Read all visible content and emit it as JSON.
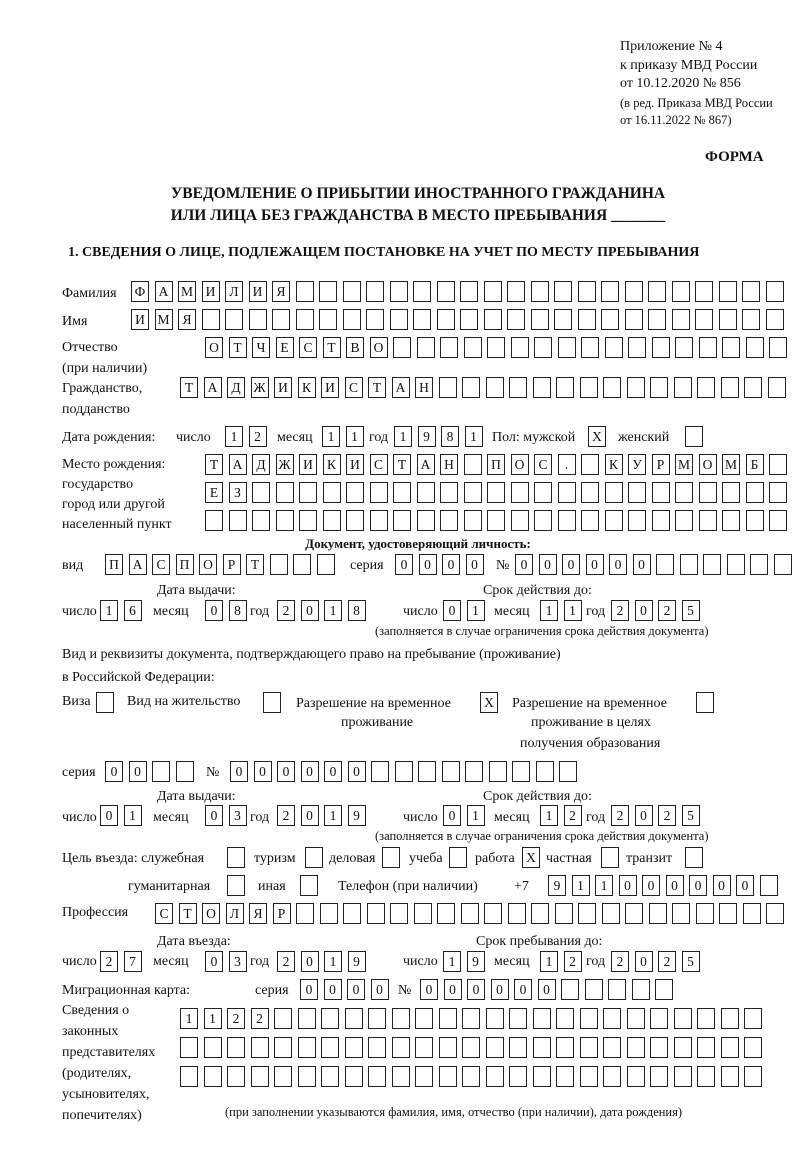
{
  "header": {
    "line1": "Приложение № 4",
    "line2": "к приказу МВД России",
    "line3": "от 10.12.2020 № 856",
    "line4": "(в ред. Приказа МВД России",
    "line5": "от 16.11.2022 № 867)",
    "forma": "ФОРМА",
    "title1": "УВЕДОМЛЕНИЕ О ПРИБЫТИИ ИНОСТРАННОГО ГРАЖДАНИНА",
    "title2": "ИЛИ ЛИЦА БЕЗ ГРАЖДАНСТВА В МЕСТО ПРЕБЫВАНИЯ _______",
    "section1": "1. СВЕДЕНИЯ О ЛИЦЕ, ПОДЛЕЖАЩЕМ ПОСТАНОВКЕ НА УЧЕТ ПО МЕСТУ ПРЕБЫВАНИЯ"
  },
  "labels": {
    "surname": "Фамилия",
    "name": "Имя",
    "patronymic1": "Отчество",
    "patronymic2": "(при наличии)",
    "citizenship1": "Гражданство,",
    "citizenship2": "подданство",
    "birth_date": "Дата рождения:",
    "day": "число",
    "month": "месяц",
    "year": "год",
    "sex": "Пол: мужской",
    "female": "женский",
    "birthplace1": "Место рождения:",
    "birthplace2": "государство",
    "birthplace3": "город или другой",
    "birthplace4": "населенный пункт",
    "id_doc": "Документ, удостоверяющий личность:",
    "kind": "вид",
    "series": "серия",
    "number": "№",
    "issue_date": "Дата выдачи:",
    "valid_until": "Срок действия до:",
    "validity_note": "(заполняется в случае ограничения срока действия документа)",
    "stay_doc1": "Вид и реквизиты документа, подтверждающего право на пребывание (проживание)",
    "stay_doc2": "в Российской Федерации:",
    "visa": "Виза",
    "residence": "Вид на жительство",
    "temp_res1": "Разрешение на временное",
    "temp_res2": "проживание",
    "temp_edu1": "Разрешение на временное",
    "temp_edu2": "проживание в целях",
    "temp_edu3": "получения образования",
    "purpose": "Цель въезда: служебная",
    "tourism": "туризм",
    "business": "деловая",
    "study": "учеба",
    "work": "работа",
    "private": "частная",
    "transit": "транзит",
    "humanitarian": "гуманитарная",
    "other": "иная",
    "phone": "Телефон (при наличии)",
    "phone_prefix": "+7",
    "profession": "Профессия",
    "entry_date": "Дата въезда:",
    "stay_until": "Срок пребывания до:",
    "migration_card": "Миграционная карта:",
    "reps1": "Сведения о",
    "reps2": "законных",
    "reps3": "представителях",
    "reps4": "(родителях,",
    "reps5": "усыновителях,",
    "reps6": "попечителях)",
    "reps_note": "(при заполнении указываются фамилия, имя, отчество (при наличии), дата рождения)"
  },
  "fields": {
    "surname": [
      "Ф",
      "А",
      "М",
      "И",
      "Л",
      "И",
      "Я"
    ],
    "name": [
      "И",
      "М",
      "Я"
    ],
    "patronymic": [
      "О",
      "Т",
      "Ч",
      "Е",
      "С",
      "Т",
      "В",
      "О"
    ],
    "citizenship": [
      "Т",
      "А",
      "Д",
      "Ж",
      "И",
      "К",
      "И",
      "С",
      "Т",
      "А",
      "Н"
    ],
    "birth_day": [
      "1",
      "2"
    ],
    "birth_month": [
      "1",
      "1"
    ],
    "birth_year": [
      "1",
      "9",
      "8",
      "1"
    ],
    "sex_male": [
      "X"
    ],
    "sex_female": [
      ""
    ],
    "birthplace1": [
      "Т",
      "А",
      "Д",
      "Ж",
      "И",
      "К",
      "И",
      "С",
      "Т",
      "А",
      "Н",
      "",
      "П",
      "О",
      "С",
      ".",
      "",
      "К",
      "У",
      "Р",
      "М",
      "О",
      "М",
      "Б"
    ],
    "birthplace2": [
      "Е",
      "З"
    ],
    "birthplace3": [],
    "doc_kind": [
      "П",
      "А",
      "С",
      "П",
      "О",
      "Р",
      "Т"
    ],
    "doc_series": [
      "0",
      "0",
      "0",
      "0"
    ],
    "doc_number": [
      "0",
      "0",
      "0",
      "0",
      "0",
      "0"
    ],
    "doc_issue_day": [
      "1",
      "6"
    ],
    "doc_issue_month": [
      "0",
      "8"
    ],
    "doc_issue_year": [
      "2",
      "0",
      "1",
      "8"
    ],
    "doc_valid_day": [
      "0",
      "1"
    ],
    "doc_valid_month": [
      "1",
      "1"
    ],
    "doc_valid_year": [
      "2",
      "0",
      "2",
      "5"
    ],
    "visa": [
      ""
    ],
    "residence": [
      ""
    ],
    "temp_res": [
      "X"
    ],
    "temp_edu": [
      ""
    ],
    "stay_series": [
      "0",
      "0"
    ],
    "stay_number": [
      "0",
      "0",
      "0",
      "0",
      "0",
      "0"
    ],
    "stay_issue_day": [
      "0",
      "1"
    ],
    "stay_issue_month": [
      "0",
      "3"
    ],
    "stay_issue_year": [
      "2",
      "0",
      "1",
      "9"
    ],
    "stay_valid_day": [
      "0",
      "1"
    ],
    "stay_valid_month": [
      "1",
      "2"
    ],
    "stay_valid_year": [
      "2",
      "0",
      "2",
      "5"
    ],
    "p_service": [
      ""
    ],
    "p_tourism": [
      ""
    ],
    "p_business": [
      ""
    ],
    "p_study": [
      ""
    ],
    "p_work": [
      "X"
    ],
    "p_private": [
      ""
    ],
    "p_transit": [
      ""
    ],
    "p_humanitarian": [
      ""
    ],
    "p_other": [
      ""
    ],
    "phone": [
      "9",
      "1",
      "1",
      "0",
      "0",
      "0",
      "0",
      "0",
      "0"
    ],
    "profession": [
      "С",
      "Т",
      "О",
      "Л",
      "Я",
      "Р"
    ],
    "entry_day": [
      "2",
      "7"
    ],
    "entry_month": [
      "0",
      "3"
    ],
    "entry_year": [
      "2",
      "0",
      "1",
      "9"
    ],
    "until_day": [
      "1",
      "9"
    ],
    "until_month": [
      "1",
      "2"
    ],
    "until_year": [
      "2",
      "0",
      "2",
      "5"
    ],
    "mc_series": [
      "0",
      "0",
      "0",
      "0"
    ],
    "mc_number": [
      "0",
      "0",
      "0",
      "0",
      "0",
      "0"
    ],
    "reps1": [
      "1",
      "1",
      "2",
      "2"
    ],
    "reps2": [],
    "reps3": []
  }
}
